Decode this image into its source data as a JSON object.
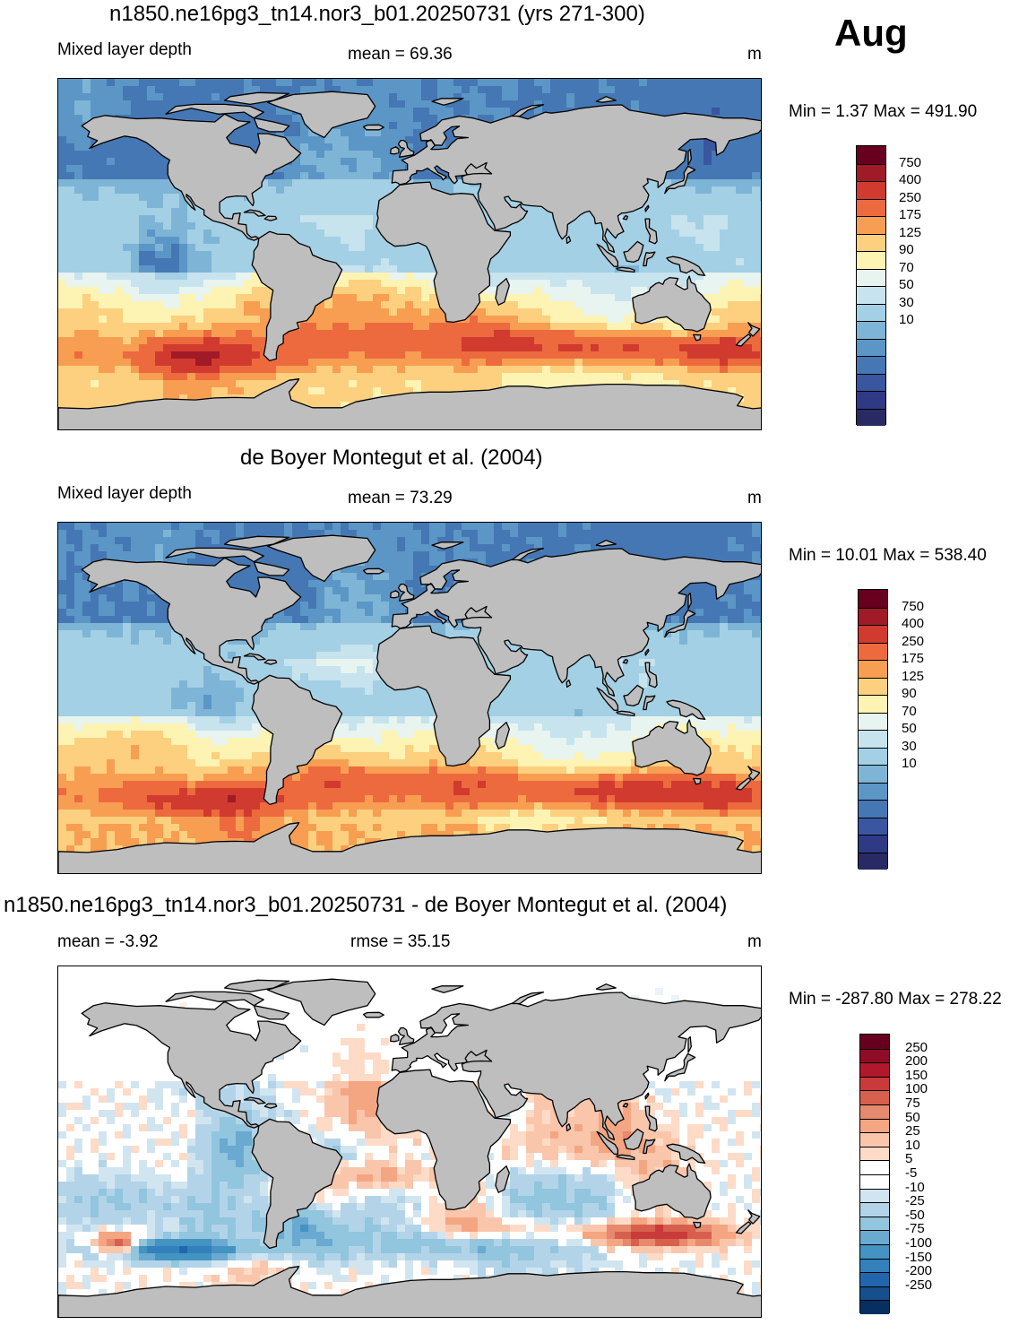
{
  "month": "Aug",
  "panels": [
    {
      "title": "n1850.ne16pg3_tn14.nor3_b01.20250731 (yrs 271-300)",
      "left_text": "Mixed layer depth",
      "center_text": "mean =  69.36",
      "units": "m",
      "minmax": "Min =   1.37 Max = 491.90",
      "field": "mld",
      "levels": [
        "750",
        "400",
        "250",
        "175",
        "125",
        "90",
        "70",
        "50",
        "30",
        "10"
      ],
      "colors": [
        "#67001f",
        "#a11a28",
        "#d13a2e",
        "#ec6a3d",
        "#f79e52",
        "#fcd07e",
        "#fdf3b3",
        "#e8f4ef",
        "#c7e3ee",
        "#a3d0e4",
        "#7eb5d6",
        "#5b96c6",
        "#4577b4",
        "#3a56a0",
        "#2e3a85",
        "#292a64"
      ]
    },
    {
      "title": "de Boyer Montegut et al. (2004)",
      "left_text": "Mixed layer depth",
      "center_text": "mean =  73.29",
      "units": "m",
      "minmax": "Min =  10.01 Max = 538.40",
      "field": "obs",
      "levels": [
        "750",
        "400",
        "250",
        "175",
        "125",
        "90",
        "70",
        "50",
        "30",
        "10"
      ],
      "colors": [
        "#67001f",
        "#a11a28",
        "#d13a2e",
        "#ec6a3d",
        "#f79e52",
        "#fcd07e",
        "#fdf3b3",
        "#e8f4ef",
        "#c7e3ee",
        "#a3d0e4",
        "#7eb5d6",
        "#5b96c6",
        "#4577b4",
        "#3a56a0",
        "#2e3a85",
        "#292a64"
      ]
    },
    {
      "title": "n1850.ne16pg3_tn14.nor3_b01.20250731 - de Boyer Montegut et al. (2004)",
      "left_text": "mean =  -3.92",
      "center_text": "rmse =  35.15",
      "units": "m",
      "minmax": "Min = -287.80 Max = 278.22",
      "field": "diff",
      "levels": [
        "250",
        "200",
        "150",
        "100",
        "75",
        "50",
        "25",
        "10",
        "5",
        "-5",
        "-10",
        "-25",
        "-50",
        "-75",
        "-100",
        "-150",
        "-200",
        "-250"
      ],
      "colors": [
        "#67001f",
        "#8e0c25",
        "#b2182b",
        "#c93a3a",
        "#d6604d",
        "#e6896e",
        "#f4a582",
        "#f9c6ac",
        "#fddbc7",
        "#ffffff",
        "#ffffff",
        "#d1e5f0",
        "#b3d4e8",
        "#92c5de",
        "#6aa9d0",
        "#4393c3",
        "#3281bb",
        "#2166ac",
        "#154f8c",
        "#053061"
      ]
    }
  ],
  "land_color": "#bebebe"
}
